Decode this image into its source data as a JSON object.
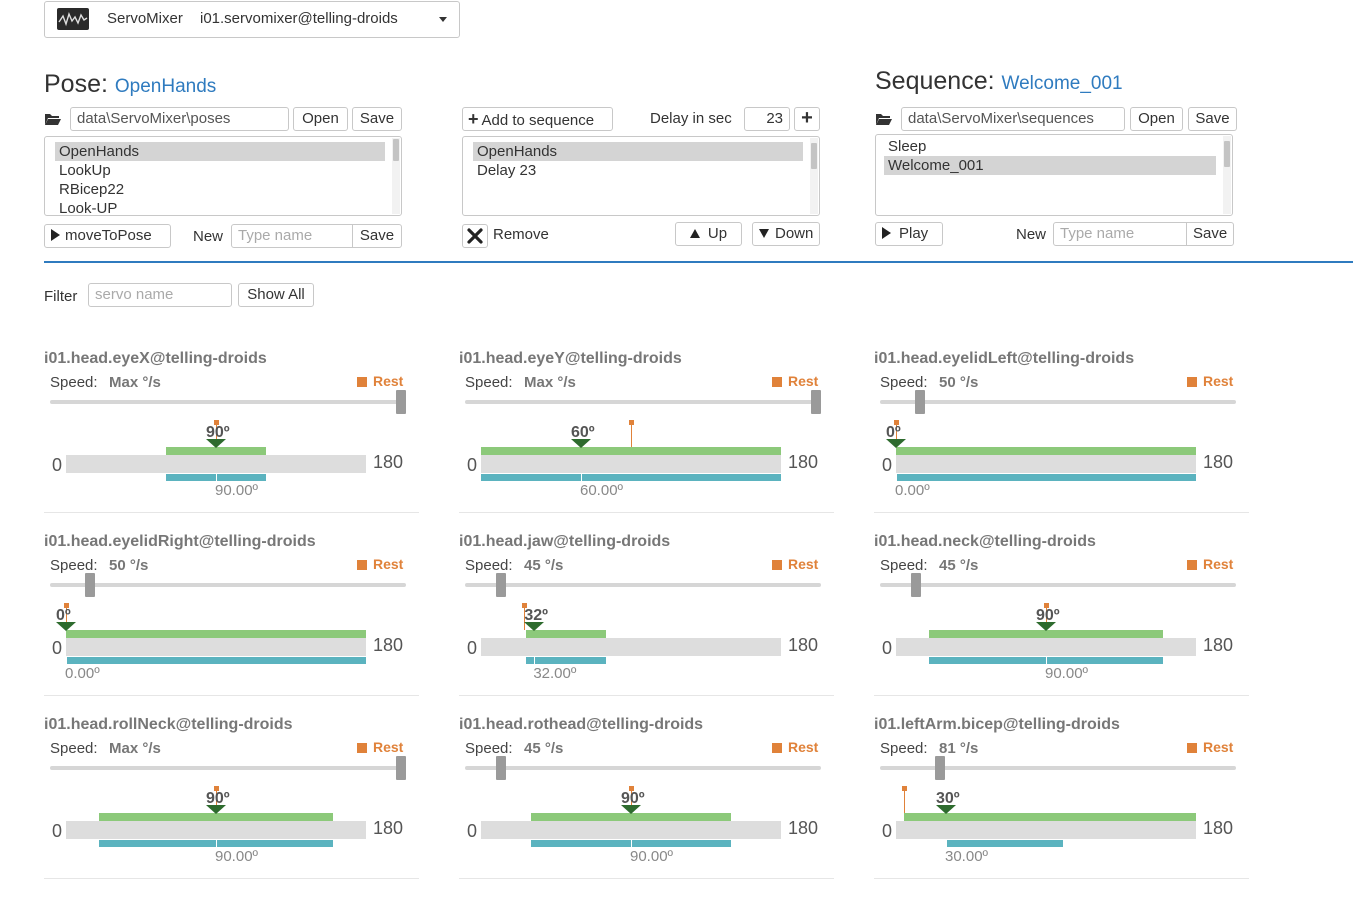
{
  "service_selector": {
    "name": "ServoMixer",
    "instance": "i01.servomixer@telling-droids"
  },
  "pose": {
    "heading": "Pose:",
    "current": "OpenHands",
    "path": "data\\ServoMixer\\poses",
    "open_label": "Open",
    "save_label": "Save",
    "items": [
      "OpenHands",
      "LookUp",
      "RBicep22",
      "Look-UP"
    ],
    "selected_index": 0,
    "move_label": "moveToPose",
    "new_label": "New",
    "new_placeholder": "Type name",
    "new_save_label": "Save"
  },
  "middle": {
    "add_label": "Add to sequence",
    "delay_label": "Delay in sec",
    "delay_value": "23",
    "items": [
      "OpenHands",
      "Delay 23"
    ],
    "selected_index": 0,
    "remove_label": "Remove",
    "up_label": "Up",
    "down_label": "Down"
  },
  "sequence": {
    "heading": "Sequence:",
    "current": "Welcome_001",
    "path": "data\\ServoMixer\\sequences",
    "open_label": "Open",
    "save_label": "Save",
    "items": [
      "Sleep",
      "Welcome_001"
    ],
    "selected_index": 1,
    "play_label": "Play",
    "new_label": "New",
    "new_placeholder": "Type name",
    "new_save_label": "Save"
  },
  "filter": {
    "label": "Filter",
    "placeholder": "servo name",
    "show_all_label": "Show All"
  },
  "servo_common": {
    "speed_label": "Speed:",
    "rest_label": "Rest",
    "min": "0",
    "max": "180"
  },
  "colors": {
    "accent": "#2f7bbf",
    "rest": "#e0823a",
    "target": "#8cc97a",
    "current": "#5bb3bf",
    "marker": "#2e6b2e"
  },
  "servos": [
    {
      "name": "i01.head.eyeX@telling-droids",
      "speed": "Max °/s",
      "speed_fraction": 1.0,
      "target": "90º",
      "target_value": 90,
      "rest_value": 90,
      "current": "90.00º",
      "current_value": 90,
      "min_value": 0,
      "max_value": 180,
      "green": [
        60,
        120
      ],
      "teal": [
        60,
        120
      ]
    },
    {
      "name": "i01.head.eyeY@telling-droids",
      "speed": "Max °/s",
      "speed_fraction": 1.0,
      "target": "60º",
      "target_value": 60,
      "rest_value": 90,
      "current": "60.00º",
      "current_value": 60,
      "min_value": 0,
      "max_value": 180,
      "green": [
        0,
        180
      ],
      "teal": [
        0,
        180
      ]
    },
    {
      "name": "i01.head.eyelidLeft@telling-droids",
      "speed": "50 °/s",
      "speed_fraction": 0.1,
      "target": "0º",
      "target_value": 0,
      "rest_value": 0,
      "current": "0.00º",
      "current_value": 0,
      "min_value": 0,
      "max_value": 180,
      "green": [
        0,
        180
      ],
      "teal": [
        0,
        180
      ]
    },
    {
      "name": "i01.head.eyelidRight@telling-droids",
      "speed": "50 °/s",
      "speed_fraction": 0.1,
      "target": "0º",
      "target_value": 0,
      "rest_value": 0,
      "current": "0.00º",
      "current_value": 0,
      "min_value": 0,
      "max_value": 180,
      "green": [
        0,
        180
      ],
      "teal": [
        0,
        180
      ]
    },
    {
      "name": "i01.head.jaw@telling-droids",
      "speed": "45 °/s",
      "speed_fraction": 0.09,
      "target": "32º",
      "target_value": 32,
      "rest_value": 26,
      "current": "32.00º",
      "current_value": 32,
      "min_value": 0,
      "max_value": 180,
      "green": [
        27,
        75
      ],
      "teal": [
        27,
        75
      ]
    },
    {
      "name": "i01.head.neck@telling-droids",
      "speed": "45 °/s",
      "speed_fraction": 0.09,
      "target": "90º",
      "target_value": 90,
      "rest_value": 90,
      "current": "90.00º",
      "current_value": 90,
      "min_value": 0,
      "max_value": 180,
      "green": [
        20,
        160
      ],
      "teal": [
        20,
        160
      ]
    },
    {
      "name": "i01.head.rollNeck@telling-droids",
      "speed": "Max °/s",
      "speed_fraction": 1.0,
      "target": "90º",
      "target_value": 90,
      "rest_value": 90,
      "current": "90.00º",
      "current_value": 90,
      "min_value": 0,
      "max_value": 180,
      "green": [
        20,
        160
      ],
      "teal": [
        20,
        160
      ]
    },
    {
      "name": "i01.head.rothead@telling-droids",
      "speed": "45 °/s",
      "speed_fraction": 0.09,
      "target": "90º",
      "target_value": 90,
      "rest_value": 90,
      "current": "90.00º",
      "current_value": 90,
      "min_value": 0,
      "max_value": 180,
      "green": [
        30,
        150
      ],
      "teal": [
        30,
        150
      ]
    },
    {
      "name": "i01.leftArm.bicep@telling-droids",
      "speed": "81 °/s",
      "speed_fraction": 0.16,
      "target": "30º",
      "target_value": 30,
      "rest_value": 5,
      "current": "30.00º",
      "current_value": 30,
      "min_value": 0,
      "max_value": 180,
      "green": [
        5,
        180
      ],
      "teal": [
        30,
        100
      ]
    }
  ]
}
